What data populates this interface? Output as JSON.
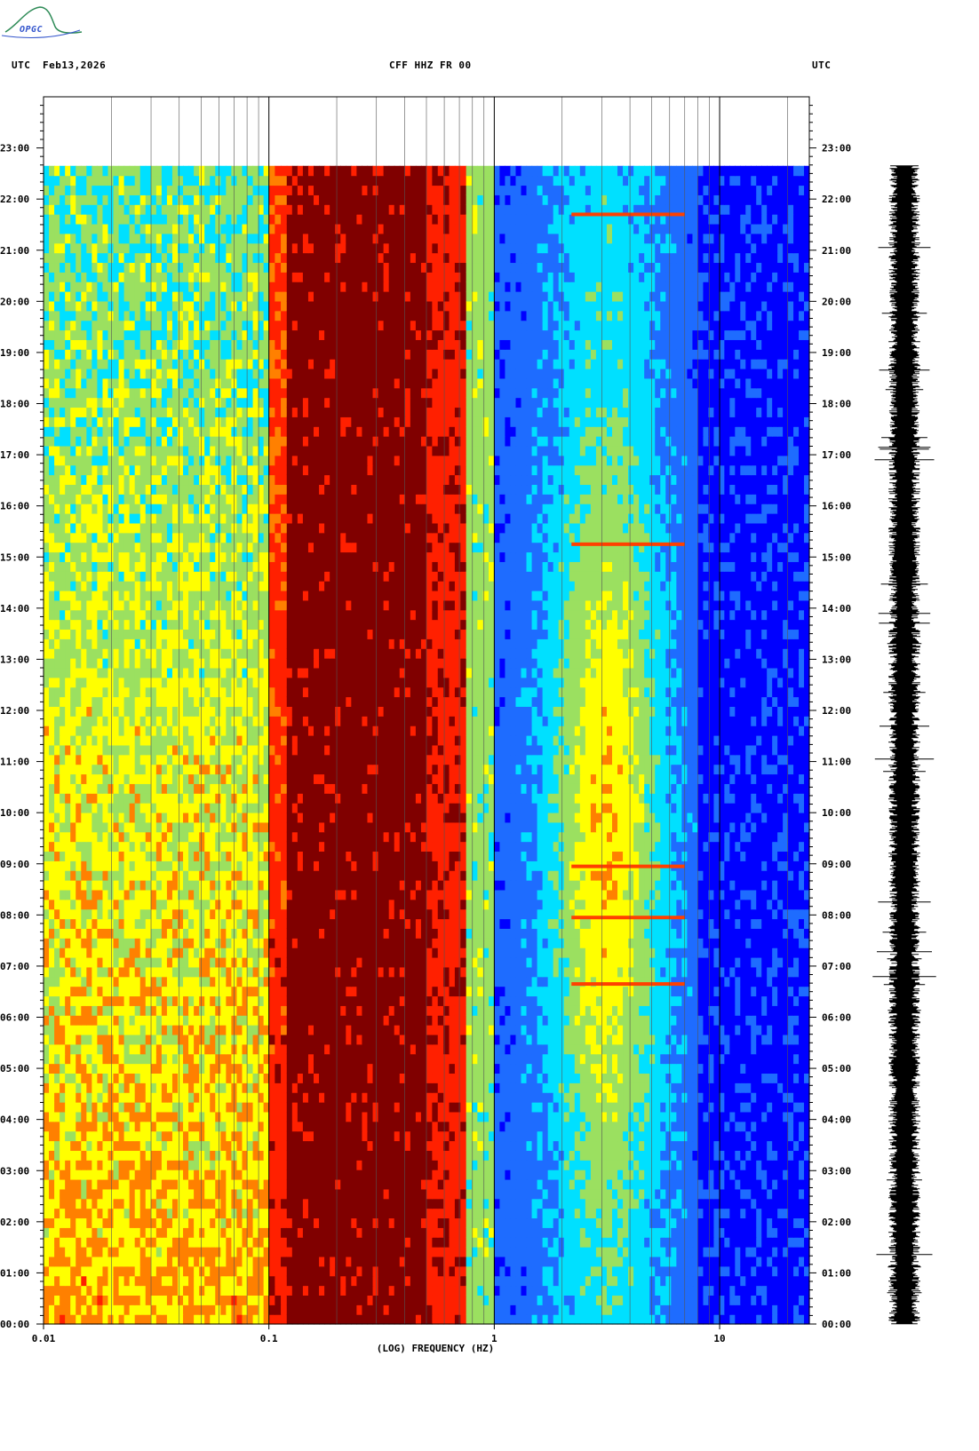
{
  "header": {
    "logo_text": "OPGC",
    "left_label": "UTC",
    "date": "Feb13,2026",
    "station": "CFF HHZ FR 00",
    "right_label": "UTC"
  },
  "chart_data": {
    "type": "heatmap",
    "title": "CFF HHZ FR 00",
    "xlabel": "(LOG) FREQUENCY (HZ)",
    "x_scale": "log",
    "xlim": [
      0.01,
      25
    ],
    "x_ticks": [
      {
        "value": 0.01,
        "label": "0.01"
      },
      {
        "value": 0.1,
        "label": "0.1"
      },
      {
        "value": 1,
        "label": "1"
      },
      {
        "value": 10,
        "label": "10"
      }
    ],
    "ylabel": "UTC",
    "ylim_hours": [
      0,
      24
    ],
    "data_end_hour": 22.65,
    "y_ticks": [
      "00:00",
      "01:00",
      "02:00",
      "03:00",
      "04:00",
      "05:00",
      "06:00",
      "07:00",
      "08:00",
      "09:00",
      "10:00",
      "11:00",
      "12:00",
      "13:00",
      "14:00",
      "15:00",
      "16:00",
      "17:00",
      "18:00",
      "19:00",
      "20:00",
      "21:00",
      "22:00",
      "23:00"
    ],
    "colormap": [
      "#00008b",
      "#0000ff",
      "#1e6cff",
      "#00e0ff",
      "#9be060",
      "#ffff00",
      "#ff8000",
      "#ff2000",
      "#800000"
    ],
    "spectral_bands": [
      {
        "f_min": 0.01,
        "f_max": 0.1,
        "level_start": 0.45,
        "level_end": 0.7
      },
      {
        "f_min": 0.1,
        "f_max": 0.12,
        "level_start": 0.82,
        "level_end": 0.9
      },
      {
        "f_min": 0.12,
        "f_max": 0.5,
        "level_start": 1.0,
        "level_end": 1.0
      },
      {
        "f_min": 0.5,
        "f_max": 0.75,
        "level_start": 0.9,
        "level_end": 0.9
      },
      {
        "f_min": 0.75,
        "f_max": 1.0,
        "level_start": 0.5,
        "level_end": 0.5
      },
      {
        "f_min": 1.0,
        "f_max": 8.0,
        "level_start": 0.32,
        "level_end": 0.28
      },
      {
        "f_min": 8.0,
        "f_max": 25,
        "level_start": 0.15,
        "level_end": 0.15
      }
    ],
    "event_hours": [
      6.65,
      7.95,
      8.95,
      15.25,
      21.7
    ]
  }
}
